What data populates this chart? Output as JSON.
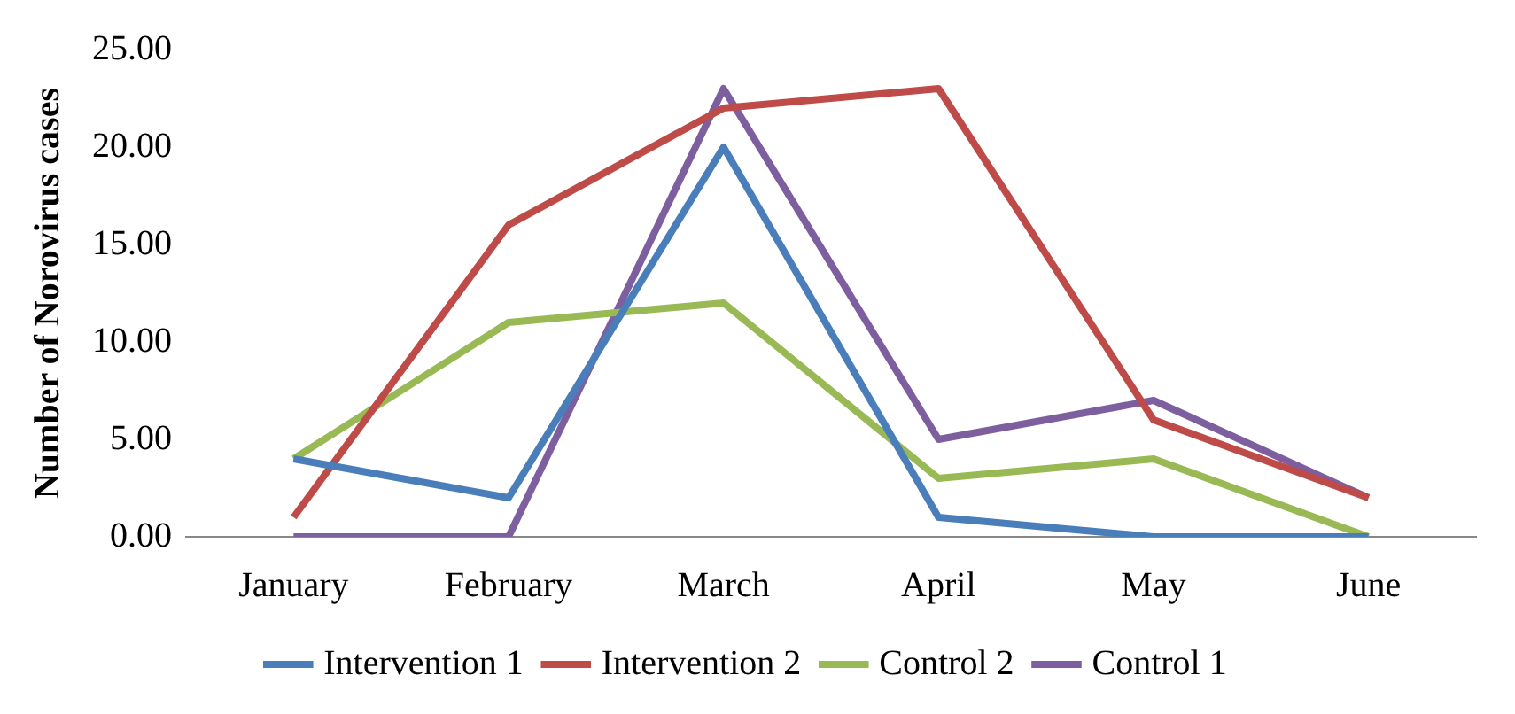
{
  "chart_data": {
    "type": "line",
    "ylabel": "Number of Norovirus cases",
    "categories": [
      "January",
      "February",
      "March",
      "April",
      "May",
      "June"
    ],
    "series": [
      {
        "name": "Intervention 1",
        "color": "#4a7ebb",
        "values": [
          4,
          2,
          20,
          1,
          0,
          0
        ]
      },
      {
        "name": "Intervention 2",
        "color": "#be4b48",
        "values": [
          1,
          16,
          22,
          23,
          6,
          2
        ]
      },
      {
        "name": "Control 2",
        "color": "#98b954",
        "values": [
          4,
          11,
          12,
          3,
          4,
          0
        ]
      },
      {
        "name": "Control 1",
        "color": "#7d5fa0",
        "values": [
          0,
          0,
          23,
          5,
          7,
          2
        ]
      }
    ],
    "ylim": [
      0,
      25
    ],
    "yticks": [
      {
        "value": 0,
        "label": "0.00"
      },
      {
        "value": 5,
        "label": "5.00"
      },
      {
        "value": 10,
        "label": "10.00"
      },
      {
        "value": 15,
        "label": "15.00"
      },
      {
        "value": 20,
        "label": "20.00"
      },
      {
        "value": 25,
        "label": "25.00"
      }
    ],
    "grid": false,
    "legend": "bottom",
    "marker": "none",
    "line_style": "solid"
  }
}
